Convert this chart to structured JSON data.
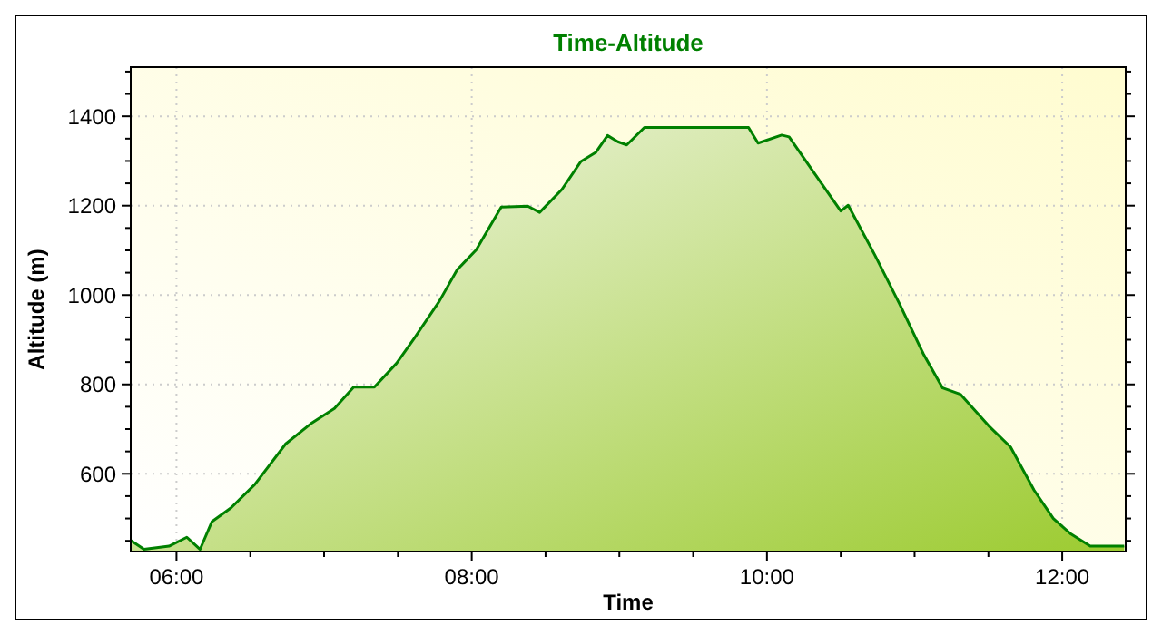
{
  "chart_data": {
    "type": "area",
    "title": "Time-Altitude",
    "xlabel": "Time",
    "ylabel": "Altitude (m)",
    "xlim": [
      5.69,
      12.43
    ],
    "ylim": [
      426,
      1510
    ],
    "xticks": [
      {
        "value": 6,
        "label": "06:00"
      },
      {
        "value": 6.5,
        "label": null
      },
      {
        "value": 7,
        "label": null
      },
      {
        "value": 7.5,
        "label": null
      },
      {
        "value": 8,
        "label": "08:00"
      },
      {
        "value": 8.5,
        "label": null
      },
      {
        "value": 9,
        "label": null
      },
      {
        "value": 9.5,
        "label": null
      },
      {
        "value": 10,
        "label": "10:00"
      },
      {
        "value": 10.5,
        "label": null
      },
      {
        "value": 11,
        "label": null
      },
      {
        "value": 11.5,
        "label": null
      },
      {
        "value": 12,
        "label": "12:00"
      }
    ],
    "yticks": [
      {
        "value": 450,
        "label": null
      },
      {
        "value": 500,
        "label": null
      },
      {
        "value": 550,
        "label": null
      },
      600,
      {
        "value": 650,
        "label": null
      },
      {
        "value": 700,
        "label": null
      },
      {
        "value": 750,
        "label": null
      },
      800,
      {
        "value": 850,
        "label": null
      },
      {
        "value": 900,
        "label": null
      },
      {
        "value": 950,
        "label": null
      },
      1000,
      {
        "value": 1050,
        "label": null
      },
      {
        "value": 1100,
        "label": null
      },
      {
        "value": 1150,
        "label": null
      },
      1200,
      {
        "value": 1250,
        "label": null
      },
      {
        "value": 1300,
        "label": null
      },
      {
        "value": 1350,
        "label": null
      },
      1400,
      {
        "value": 1450,
        "label": null
      },
      {
        "value": 1500,
        "label": null
      }
    ],
    "grid": true,
    "x": [
      5.69,
      5.78,
      5.95,
      6.07,
      6.16,
      6.24,
      6.37,
      6.53,
      6.74,
      6.91,
      7.07,
      7.2,
      7.34,
      7.49,
      7.61,
      7.78,
      7.9,
      8.03,
      8.2,
      8.38,
      8.46,
      8.61,
      8.74,
      8.84,
      8.92,
      8.99,
      9.05,
      9.17,
      9.875,
      9.94,
      10.1,
      10.15,
      10.31,
      10.5,
      10.55,
      10.73,
      10.9,
      11.06,
      11.19,
      11.31,
      11.5,
      11.65,
      11.81,
      11.94,
      12.06,
      12.19,
      12.42
    ],
    "series": [
      {
        "color": "#008000",
        "values": [
          451,
          431,
          438,
          458,
          431,
          493,
          524,
          576,
          667,
          712,
          746,
          794,
          794,
          847,
          903,
          986,
          1056,
          1101,
          1197,
          1199,
          1185,
          1236,
          1299,
          1319,
          1357,
          1343,
          1336,
          1375,
          1375,
          1340,
          1358,
          1354,
          1278,
          1188,
          1201,
          1090,
          979,
          868,
          792,
          778,
          708,
          660,
          563,
          500,
          465,
          438,
          438
        ]
      }
    ]
  }
}
